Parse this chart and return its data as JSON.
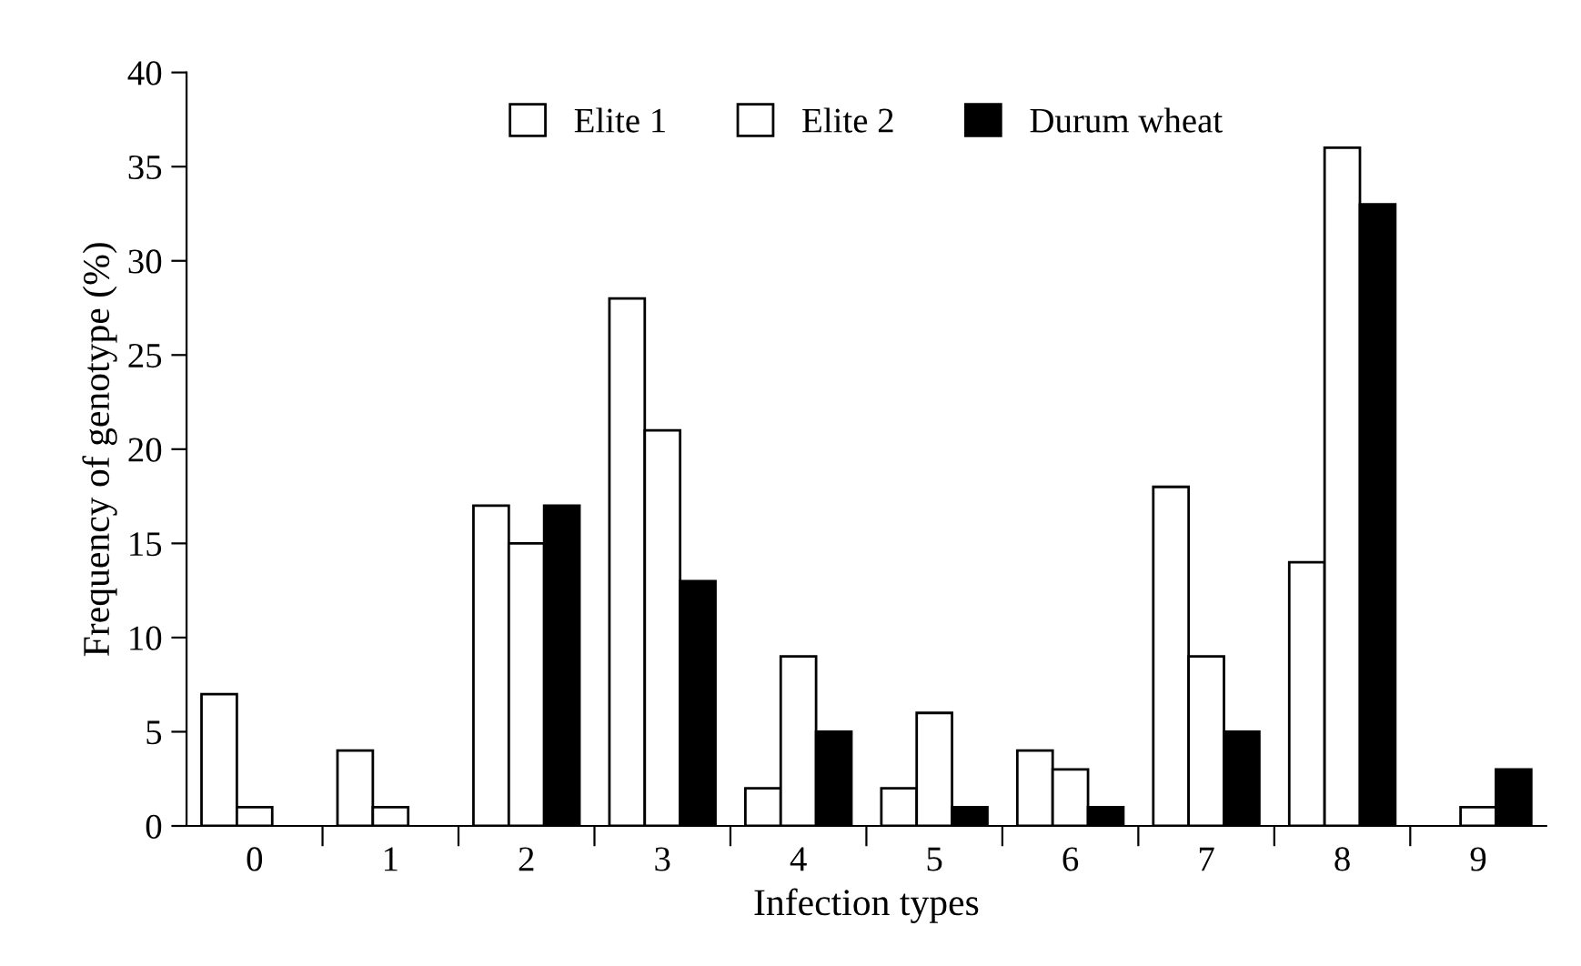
{
  "chart_data": {
    "type": "bar",
    "xlabel": "Infection types",
    "ylabel": "Frequency of genotype (%)",
    "categories": [
      "0",
      "1",
      "2",
      "3",
      "4",
      "5",
      "6",
      "7",
      "8",
      "9"
    ],
    "series": [
      {
        "name": "Elite 1",
        "color": "#ffffff",
        "values": [
          7,
          4,
          17,
          28,
          2,
          2,
          4,
          18,
          14,
          0
        ]
      },
      {
        "name": "Elite 2",
        "color": "#ffffff",
        "values": [
          1,
          1,
          15,
          21,
          9,
          6,
          3,
          9,
          36,
          1
        ]
      },
      {
        "name": "Durum wheat",
        "color": "#000000",
        "values": [
          0,
          0,
          17,
          13,
          5,
          1,
          1,
          5,
          33,
          3
        ]
      }
    ],
    "ylim": [
      0,
      40
    ],
    "yticks": [
      0,
      5,
      10,
      15,
      20,
      25,
      30,
      35,
      40
    ],
    "grid": false,
    "legend": "top"
  }
}
